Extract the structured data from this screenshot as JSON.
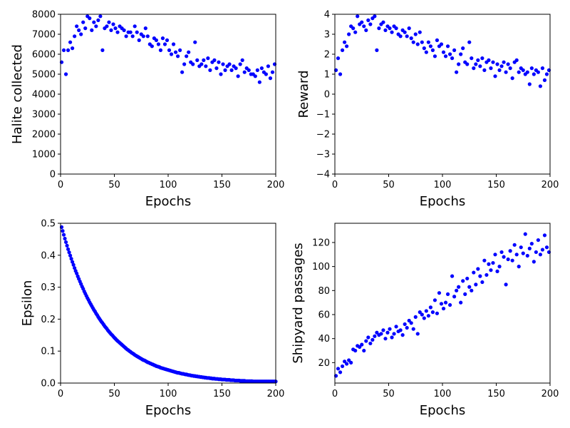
{
  "marker_color": "#0000ff",
  "chart_data": [
    {
      "type": "scatter",
      "xlabel": "Epochs",
      "ylabel": "Halite collected",
      "xlim": [
        0,
        200
      ],
      "ylim": [
        0,
        8000
      ],
      "xticks": [
        "0",
        "50",
        "100",
        "150",
        "200"
      ],
      "yticks": [
        "0",
        "1000",
        "2000",
        "3000",
        "4000",
        "5000",
        "6000",
        "7000",
        "8000"
      ],
      "xtick_values": [
        0,
        50,
        100,
        150,
        200
      ],
      "ytick_values": [
        0,
        1000,
        2000,
        3000,
        4000,
        5000,
        6000,
        7000,
        8000
      ],
      "x": [
        1,
        3,
        5,
        7,
        9,
        11,
        13,
        15,
        17,
        19,
        21,
        23,
        25,
        27,
        29,
        31,
        33,
        35,
        37,
        39,
        41,
        43,
        45,
        47,
        49,
        51,
        53,
        55,
        57,
        59,
        61,
        63,
        65,
        67,
        69,
        71,
        73,
        75,
        77,
        79,
        81,
        83,
        85,
        87,
        89,
        91,
        93,
        95,
        97,
        99,
        101,
        103,
        105,
        107,
        109,
        111,
        113,
        115,
        117,
        119,
        121,
        123,
        125,
        127,
        129,
        131,
        133,
        135,
        137,
        139,
        141,
        143,
        145,
        147,
        149,
        151,
        153,
        155,
        157,
        159,
        161,
        163,
        165,
        167,
        169,
        171,
        173,
        175,
        177,
        179,
        181,
        183,
        185,
        187,
        189,
        191,
        193,
        195,
        197,
        199
      ],
      "y": [
        5600,
        6200,
        5000,
        6200,
        6600,
        6300,
        6900,
        7400,
        7200,
        7000,
        7600,
        7300,
        7900,
        7800,
        7200,
        7600,
        7400,
        7700,
        7900,
        6200,
        7300,
        7400,
        7600,
        7200,
        7500,
        7300,
        7100,
        7400,
        7300,
        7200,
        6900,
        7100,
        7100,
        6900,
        7400,
        7100,
        6700,
        7000,
        6900,
        7300,
        6900,
        6500,
        6400,
        6800,
        6700,
        6500,
        6200,
        6800,
        6500,
        6700,
        6200,
        6000,
        6500,
        6100,
        5900,
        6200,
        5100,
        5500,
        5900,
        6100,
        5600,
        5500,
        6600,
        5700,
        5400,
        5500,
        5700,
        5400,
        5800,
        5200,
        5600,
        5700,
        5300,
        5600,
        5000,
        5500,
        5200,
        5400,
        5500,
        5200,
        5400,
        5300,
        4900,
        5500,
        5700,
        5100,
        5300,
        5200,
        5000,
        5000,
        4900,
        5200,
        4600,
        5300,
        5100,
        5000,
        5400,
        4800,
        5100,
        5500
      ]
    },
    {
      "type": "scatter",
      "xlabel": "Epochs",
      "ylabel": "Reward",
      "xlim": [
        0,
        200
      ],
      "ylim": [
        -4,
        4
      ],
      "xticks": [
        "0",
        "50",
        "100",
        "150",
        "200"
      ],
      "yticks": [
        "−4",
        "−3",
        "−2",
        "−1",
        "0",
        "1",
        "2",
        "3",
        "4"
      ],
      "xtick_values": [
        0,
        50,
        100,
        150,
        200
      ],
      "ytick_values": [
        -4,
        -3,
        -2,
        -1,
        0,
        1,
        2,
        3,
        4
      ],
      "x": [
        1,
        3,
        5,
        7,
        9,
        11,
        13,
        15,
        17,
        19,
        21,
        23,
        25,
        27,
        29,
        31,
        33,
        35,
        37,
        39,
        41,
        43,
        45,
        47,
        49,
        51,
        53,
        55,
        57,
        59,
        61,
        63,
        65,
        67,
        69,
        71,
        73,
        75,
        77,
        79,
        81,
        83,
        85,
        87,
        89,
        91,
        93,
        95,
        97,
        99,
        101,
        103,
        105,
        107,
        109,
        111,
        113,
        115,
        117,
        119,
        121,
        123,
        125,
        127,
        129,
        131,
        133,
        135,
        137,
        139,
        141,
        143,
        145,
        147,
        149,
        151,
        153,
        155,
        157,
        159,
        161,
        163,
        165,
        167,
        169,
        171,
        173,
        175,
        177,
        179,
        181,
        183,
        185,
        187,
        189,
        191,
        193,
        195,
        197,
        199
      ],
      "y": [
        1.2,
        1.8,
        1.0,
        2.2,
        2.6,
        2.4,
        3.0,
        3.4,
        3.3,
        3.1,
        3.9,
        3.5,
        3.6,
        3.4,
        3.2,
        3.7,
        3.5,
        3.8,
        3.9,
        2.2,
        3.3,
        3.5,
        3.6,
        3.2,
        3.4,
        3.3,
        3.1,
        3.4,
        3.3,
        3.0,
        2.9,
        3.2,
        3.1,
        2.9,
        3.3,
        2.8,
        2.6,
        3.0,
        2.5,
        3.1,
        2.6,
        2.3,
        2.1,
        2.6,
        2.4,
        2.2,
        1.9,
        2.7,
        2.4,
        2.5,
        2.1,
        1.9,
        2.4,
        2.0,
        1.8,
        2.2,
        1.1,
        1.5,
        2.0,
        2.3,
        1.6,
        1.5,
        2.6,
        1.8,
        1.3,
        1.5,
        1.7,
        1.4,
        1.8,
        1.2,
        1.6,
        1.7,
        1.3,
        1.6,
        0.9,
        1.5,
        1.2,
        1.4,
        1.6,
        1.1,
        1.5,
        1.3,
        0.8,
        1.6,
        1.7,
        1.1,
        1.3,
        1.2,
        1.0,
        1.1,
        0.5,
        1.3,
        1.0,
        1.2,
        1.1,
        0.4,
        1.3,
        0.7,
        1.0,
        1.2
      ]
    },
    {
      "type": "scatter",
      "xlabel": "Epochs",
      "ylabel": "Epsilon",
      "xlim": [
        0,
        200
      ],
      "ylim": [
        0,
        0.5
      ],
      "xticks": [
        "0",
        "50",
        "100",
        "150",
        "200"
      ],
      "yticks": [
        "0.0",
        "0.1",
        "0.2",
        "0.3",
        "0.4",
        "0.5"
      ],
      "xtick_values": [
        0,
        50,
        100,
        150,
        200
      ],
      "ytick_values": [
        0,
        0.1,
        0.2,
        0.3,
        0.4,
        0.5
      ],
      "x": [
        1,
        2,
        3,
        4,
        5,
        6,
        7,
        8,
        9,
        10,
        11,
        12,
        13,
        14,
        15,
        16,
        17,
        18,
        19,
        20,
        21,
        22,
        23,
        24,
        25,
        26,
        27,
        28,
        29,
        30,
        31,
        32,
        33,
        34,
        35,
        36,
        37,
        38,
        39,
        40,
        41,
        42,
        43,
        44,
        45,
        46,
        47,
        48,
        49,
        50,
        51,
        52,
        53,
        54,
        55,
        56,
        57,
        58,
        59,
        60,
        61,
        62,
        63,
        64,
        65,
        66,
        67,
        68,
        69,
        70,
        71,
        72,
        73,
        74,
        75,
        76,
        77,
        78,
        79,
        80,
        81,
        82,
        83,
        84,
        85,
        86,
        87,
        88,
        89,
        90,
        91,
        92,
        93,
        94,
        95,
        96,
        97,
        98,
        99,
        100,
        101,
        102,
        103,
        104,
        105,
        106,
        107,
        108,
        109,
        110,
        111,
        112,
        113,
        114,
        115,
        116,
        117,
        118,
        119,
        120,
        121,
        122,
        123,
        124,
        125,
        126,
        127,
        128,
        129,
        130,
        131,
        132,
        133,
        134,
        135,
        136,
        137,
        138,
        139,
        140,
        141,
        142,
        143,
        144,
        145,
        146,
        147,
        148,
        149,
        150,
        151,
        152,
        153,
        154,
        155,
        156,
        157,
        158,
        159,
        160,
        161,
        162,
        163,
        164,
        165,
        166,
        167,
        168,
        169,
        170,
        171,
        172,
        173,
        174,
        175,
        176,
        177,
        178,
        179,
        180,
        181,
        182,
        183,
        184,
        185,
        186,
        187,
        188,
        189,
        190,
        191,
        192,
        193,
        194,
        195,
        196,
        197,
        198,
        199,
        200
      ],
      "y": [
        0.488,
        0.476,
        0.464,
        0.452,
        0.441,
        0.43,
        0.419,
        0.409,
        0.399,
        0.389,
        0.379,
        0.37,
        0.36,
        0.351,
        0.343,
        0.334,
        0.326,
        0.318,
        0.31,
        0.302,
        0.295,
        0.287,
        0.28,
        0.273,
        0.266,
        0.26,
        0.253,
        0.247,
        0.241,
        0.235,
        0.229,
        0.224,
        0.218,
        0.213,
        0.207,
        0.202,
        0.197,
        0.192,
        0.188,
        0.183,
        0.178,
        0.174,
        0.17,
        0.165,
        0.161,
        0.157,
        0.153,
        0.15,
        0.146,
        0.142,
        0.139,
        0.135,
        0.132,
        0.129,
        0.126,
        0.123,
        0.12,
        0.117,
        0.114,
        0.111,
        0.108,
        0.105,
        0.103,
        0.1,
        0.098,
        0.095,
        0.093,
        0.091,
        0.088,
        0.086,
        0.084,
        0.082,
        0.08,
        0.078,
        0.076,
        0.074,
        0.072,
        0.071,
        0.069,
        0.067,
        0.065,
        0.064,
        0.062,
        0.061,
        0.059,
        0.058,
        0.056,
        0.055,
        0.053,
        0.052,
        0.051,
        0.05,
        0.048,
        0.047,
        0.046,
        0.045,
        0.044,
        0.043,
        0.042,
        0.041,
        0.04,
        0.039,
        0.038,
        0.037,
        0.036,
        0.035,
        0.034,
        0.033,
        0.032,
        0.032,
        0.031,
        0.03,
        0.029,
        0.029,
        0.028,
        0.027,
        0.027,
        0.026,
        0.025,
        0.025,
        0.024,
        0.023,
        0.023,
        0.022,
        0.022,
        0.021,
        0.021,
        0.02,
        0.02,
        0.019,
        0.019,
        0.018,
        0.018,
        0.017,
        0.017,
        0.016,
        0.016,
        0.016,
        0.015,
        0.015,
        0.014,
        0.014,
        0.014,
        0.013,
        0.013,
        0.013,
        0.012,
        0.012,
        0.012,
        0.011,
        0.011,
        0.011,
        0.011,
        0.01,
        0.01,
        0.01,
        0.01,
        0.009,
        0.009,
        0.009,
        0.009,
        0.008,
        0.008,
        0.008,
        0.008,
        0.008,
        0.007,
        0.007,
        0.007,
        0.007,
        0.007,
        0.006,
        0.006,
        0.006,
        0.006,
        0.006,
        0.006,
        0.006,
        0.005,
        0.005,
        0.005,
        0.005,
        0.005,
        0.005,
        0.005,
        0.005,
        0.005,
        0.005,
        0.005,
        0.005,
        0.005,
        0.005,
        0.005,
        0.005,
        0.005,
        0.005,
        0.005,
        0.005,
        0.005,
        0.005
      ]
    },
    {
      "type": "scatter",
      "xlabel": "Epochs",
      "ylabel": "Shipyard passages",
      "xlim": [
        0,
        200
      ],
      "ylim": [
        3,
        136
      ],
      "xticks": [
        "0",
        "50",
        "100",
        "150",
        "200"
      ],
      "yticks": [
        "20",
        "40",
        "60",
        "80",
        "100",
        "120"
      ],
      "xtick_values": [
        0,
        50,
        100,
        150,
        200
      ],
      "ytick_values": [
        20,
        40,
        60,
        80,
        100,
        120
      ],
      "x": [
        1,
        3,
        5,
        7,
        9,
        11,
        13,
        15,
        17,
        19,
        21,
        23,
        25,
        27,
        29,
        31,
        33,
        35,
        37,
        39,
        41,
        43,
        45,
        47,
        49,
        51,
        53,
        55,
        57,
        59,
        61,
        63,
        65,
        67,
        69,
        71,
        73,
        75,
        77,
        79,
        81,
        83,
        85,
        87,
        89,
        91,
        93,
        95,
        97,
        99,
        101,
        103,
        105,
        107,
        109,
        111,
        113,
        115,
        117,
        119,
        121,
        123,
        125,
        127,
        129,
        131,
        133,
        135,
        137,
        139,
        141,
        143,
        145,
        147,
        149,
        151,
        153,
        155,
        157,
        159,
        161,
        163,
        165,
        167,
        169,
        171,
        173,
        175,
        177,
        179,
        181,
        183,
        185,
        187,
        189,
        191,
        193,
        195,
        197,
        199
      ],
      "y": [
        9,
        15,
        12,
        17,
        21,
        19,
        22,
        20,
        31,
        30,
        34,
        33,
        35,
        30,
        38,
        41,
        36,
        39,
        42,
        45,
        43,
        44,
        47,
        40,
        45,
        48,
        41,
        44,
        50,
        46,
        47,
        43,
        52,
        49,
        55,
        53,
        48,
        58,
        44,
        62,
        60,
        57,
        63,
        59,
        66,
        62,
        72,
        61,
        78,
        69,
        65,
        70,
        77,
        68,
        92,
        75,
        80,
        83,
        70,
        88,
        77,
        90,
        83,
        80,
        95,
        85,
        98,
        92,
        87,
        105,
        93,
        102,
        97,
        103,
        110,
        96,
        100,
        112,
        108,
        85,
        106,
        113,
        105,
        118,
        110,
        100,
        116,
        111,
        127,
        109,
        115,
        119,
        104,
        112,
        122,
        110,
        114,
        126,
        116,
        112
      ]
    }
  ]
}
